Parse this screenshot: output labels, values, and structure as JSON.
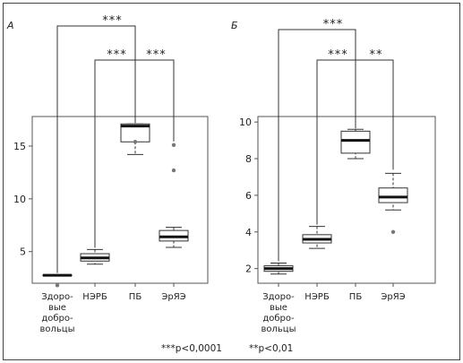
{
  "figure": {
    "footnote_left": "***p<0,0001",
    "footnote_right": "**p<0,01"
  },
  "chart_data": [
    {
      "type": "box",
      "panel_label": "А",
      "categories": [
        [
          "Здоро-",
          "вые",
          "добро-",
          "вольцы"
        ],
        [
          "НЭРБ"
        ],
        [
          "ПБ"
        ],
        [
          "ЭрЯЭ"
        ]
      ],
      "ylim": [
        2,
        17.8
      ],
      "yticks": [
        5,
        10,
        15
      ],
      "boxes": [
        {
          "whisker_low": 2.7,
          "q1": 2.7,
          "median": 2.75,
          "q3": 2.8,
          "whisker_high": 2.8,
          "outliers": [
            1.8
          ]
        },
        {
          "whisker_low": 3.8,
          "q1": 4.1,
          "median": 4.4,
          "q3": 4.8,
          "whisker_high": 5.2,
          "outliers": []
        },
        {
          "whisker_low": 14.2,
          "q1": 15.4,
          "median": 16.9,
          "q3": 17.1,
          "whisker_high": 17.1,
          "outliers": [
            15.4
          ]
        },
        {
          "whisker_low": 5.4,
          "q1": 6.0,
          "median": 6.4,
          "q3": 7.0,
          "whisker_high": 7.3,
          "outliers": [
            12.7,
            15.1
          ]
        }
      ],
      "brackets": [
        {
          "from": 0,
          "to": 2,
          "label": "***"
        },
        {
          "from": 1,
          "to": 3,
          "label": "***",
          "apex": 2,
          "label_right": "***"
        }
      ]
    },
    {
      "type": "box",
      "panel_label": "Б",
      "categories": [
        [
          "Здоро-",
          "вые",
          "добро-",
          "вольцы"
        ],
        [
          "НЭРБ"
        ],
        [
          "ПБ"
        ],
        [
          "ЭрЯЭ"
        ]
      ],
      "ylim": [
        1.2,
        10.3
      ],
      "yticks": [
        2,
        4,
        6,
        8,
        10
      ],
      "boxes": [
        {
          "whisker_low": 1.7,
          "q1": 1.85,
          "median": 2.0,
          "q3": 2.15,
          "whisker_high": 2.3,
          "outliers": []
        },
        {
          "whisker_low": 3.1,
          "q1": 3.4,
          "median": 3.6,
          "q3": 3.85,
          "whisker_high": 4.3,
          "outliers": []
        },
        {
          "whisker_low": 8.0,
          "q1": 8.3,
          "median": 9.0,
          "q3": 9.5,
          "whisker_high": 9.6,
          "outliers": []
        },
        {
          "whisker_low": 5.2,
          "q1": 5.6,
          "median": 5.9,
          "q3": 6.4,
          "whisker_high": 7.2,
          "outliers": [
            4.0
          ]
        }
      ],
      "brackets": [
        {
          "from": 0,
          "to": 2,
          "label": "***"
        },
        {
          "from": 1,
          "to": 3,
          "label": "***",
          "apex": 2,
          "label_right": "**"
        }
      ]
    }
  ]
}
